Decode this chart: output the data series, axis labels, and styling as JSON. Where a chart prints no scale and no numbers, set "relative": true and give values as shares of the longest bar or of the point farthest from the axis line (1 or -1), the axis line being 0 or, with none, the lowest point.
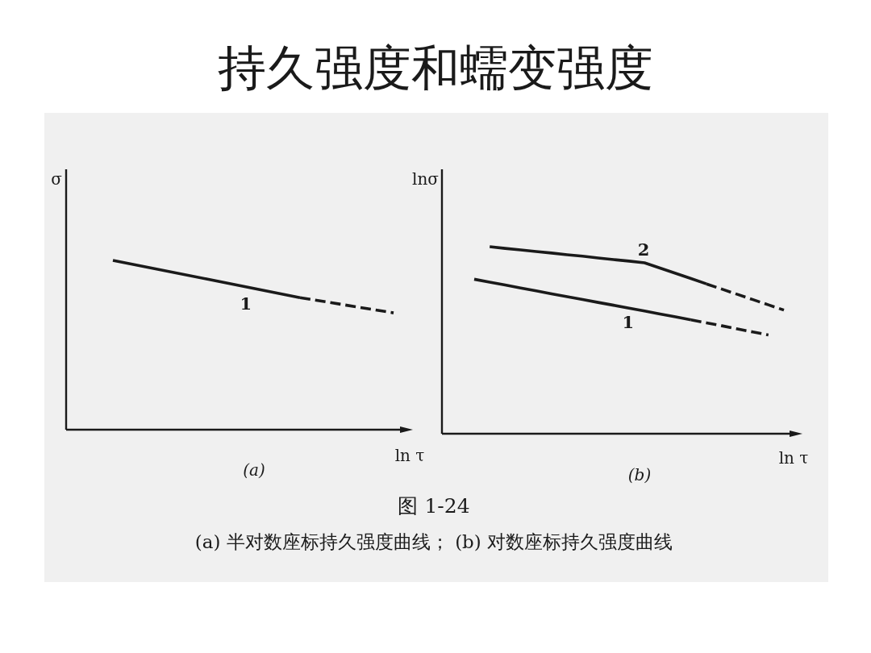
{
  "chart_data": [
    {
      "type": "line",
      "title": "持久强度和蠕变强度",
      "subtitle": "(a)",
      "xlabel": "ln τ",
      "ylabel": "σ",
      "relative": true,
      "categories": [
        null,
        null,
        null,
        null
      ],
      "series": [
        {
          "name": "1",
          "color": "#1a1a1a",
          "line_style": "solid",
          "values": [
            1,
            0.89,
            0.78,
            null
          ]
        },
        {
          "color": "#1a1a1a",
          "line_style": "dashed",
          "values": [
            null,
            null,
            0.78,
            0.69
          ]
        }
      ],
      "annotations": [
        "图 1-24",
        "(a) 半对数座标持久强度曲线； (b) 对数座标持久强度曲线"
      ]
    },
    {
      "type": "line",
      "subtitle": "(b)",
      "xlabel": "ln τ",
      "ylabel": "lnσ",
      "relative": true,
      "categories": [
        null,
        null,
        null,
        null,
        null,
        null,
        null,
        null,
        null,
        null,
        null,
        null,
        null,
        null,
        null,
        null,
        null,
        null,
        null,
        null,
        null
      ],
      "series": [
        {
          "name": "1",
          "color": "#1a1a1a",
          "line_style": "solid",
          "values": [
            0.826,
            0.81,
            0.795,
            0.779,
            0.764,
            0.748,
            0.733,
            0.718,
            0.702,
            0.687,
            0.671,
            0.656,
            0.64,
            0.625,
            0.609,
            null,
            null,
            null,
            null,
            null,
            null
          ]
        },
        {
          "color": "#1a1a1a",
          "line_style": "dashed",
          "values": [
            null,
            null,
            null,
            null,
            null,
            null,
            null,
            null,
            null,
            null,
            null,
            null,
            null,
            null,
            0.609,
            0.593,
            0.577,
            0.56,
            0.544,
            0.528,
            null
          ]
        },
        {
          "name": "2",
          "color": "#1a1a1a",
          "line_style": "solid",
          "values": [
            null,
            1,
            0.991,
            0.983,
            0.974,
            0.966,
            0.957,
            0.949,
            0.94,
            0.931,
            0.923,
            0.914,
            0.886,
            0.858,
            0.83,
            0.801,
            null,
            null,
            null,
            null,
            null
          ]
        },
        {
          "color": "#1a1a1a",
          "line_style": "dashed",
          "values": [
            null,
            null,
            null,
            null,
            null,
            null,
            null,
            null,
            null,
            null,
            null,
            null,
            null,
            null,
            null,
            0.801,
            0.773,
            0.745,
            0.717,
            0.689,
            0.661
          ]
        }
      ]
    }
  ]
}
